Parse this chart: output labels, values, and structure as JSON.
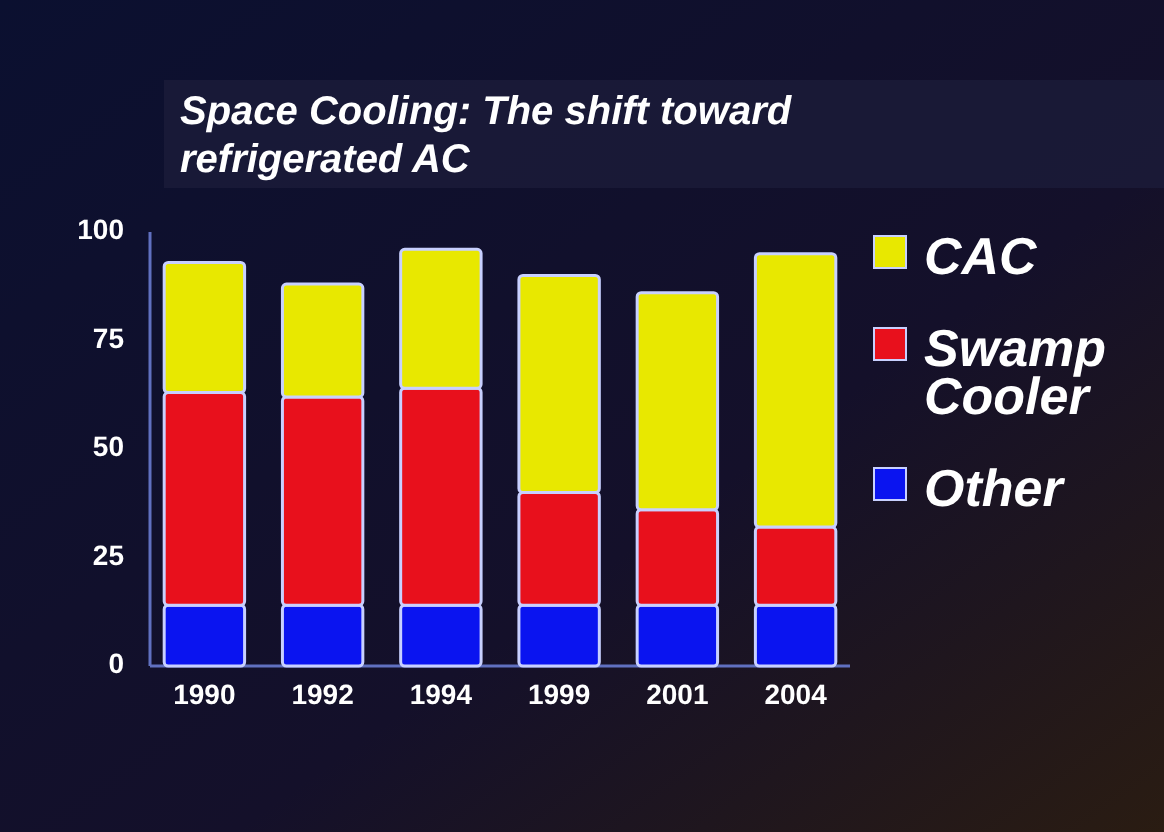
{
  "chart_data": {
    "type": "bar",
    "title": "Space Cooling: The shift toward refrigerated AC",
    "categories": [
      "1990",
      "1992",
      "1994",
      "1999",
      "2001",
      "2004"
    ],
    "stacked": true,
    "legend": "right",
    "ylim": [
      0,
      100
    ],
    "yticks": [
      0,
      25,
      50,
      75,
      100
    ],
    "series": [
      {
        "name": "Other",
        "color": "#0a14f0",
        "values": [
          14,
          14,
          14,
          14,
          14,
          14
        ]
      },
      {
        "name": "Swamp Cooler",
        "color": "#e8101c",
        "values": [
          49,
          48,
          50,
          26,
          22,
          18
        ]
      },
      {
        "name": "CAC",
        "color": "#e8e800",
        "values": [
          30,
          26,
          32,
          50,
          50,
          63
        ]
      }
    ]
  }
}
